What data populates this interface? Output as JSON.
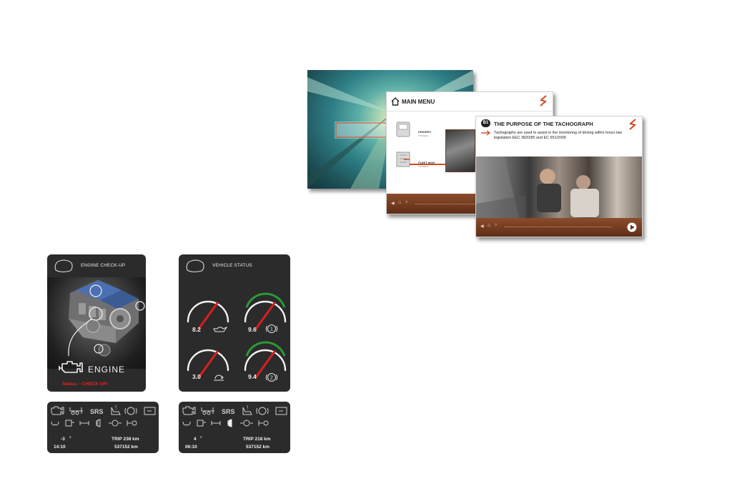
{
  "slides": {
    "main_menu": {
      "title": "MAIN MENU",
      "items": [
        {
          "label": "DRIVERS",
          "sub": "TUTORIAL"
        },
        {
          "label": "FLEET MGN",
          "sub": "TUTORIAL"
        }
      ]
    },
    "tachograph": {
      "number": "B1",
      "title": "THE PURPOSE OF THE TACHOGRAPH",
      "text": "Tachographs are used to assist in the monitoring of driving within hours law legislation EEC 3820/85 and EC 551/2006"
    },
    "colors": {
      "accent": "#d3491f",
      "bar": "#7a3d20"
    }
  },
  "engine_panel": {
    "title": "ENGINE CHECK-UP",
    "engine_label": "ENGINE",
    "status": "Status: - CHECK UP!"
  },
  "vehicle_panel": {
    "title": "VEHICLE STATUS",
    "gauges": [
      {
        "value": "8.2",
        "icon": "oil-can-icon",
        "arc": "white",
        "needle_level": 0.6
      },
      {
        "value": "9.6",
        "icon": "brake-circuit-1-icon",
        "arc": "green",
        "needle_level": 0.6
      },
      {
        "value": "3.0",
        "icon": "air-suspension-icon",
        "arc": "white",
        "needle_level": 0.6
      },
      {
        "value": "9.4",
        "icon": "brake-circuit-2-icon",
        "arc": "green",
        "needle_level": 0.6
      }
    ]
  },
  "strip_left": {
    "srs": "SRS",
    "temp": "-3",
    "deg": "°",
    "time": "14:10",
    "trip": "TRIP  238 km",
    "odo": "537152 km"
  },
  "strip_right": {
    "srs": "SRS",
    "temp": "4",
    "deg": "°",
    "time": "06:10",
    "trip": "TRIP  218 km",
    "odo": "537152 km"
  }
}
